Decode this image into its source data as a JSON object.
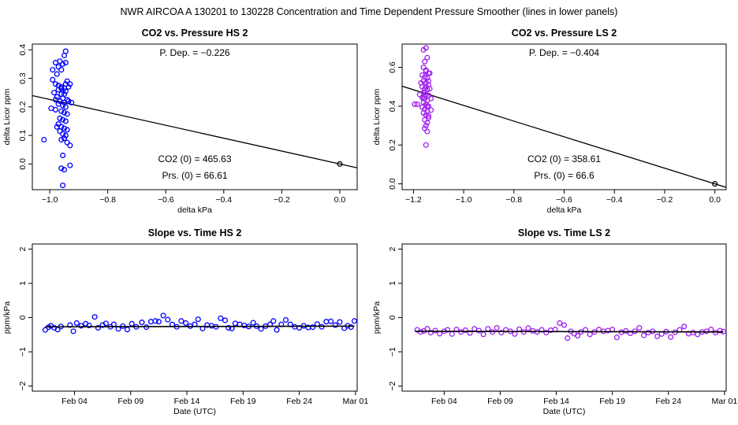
{
  "figure": {
    "title": "NWR   AIRCOA A   130201 to 130228   Concentration and Time Dependent Pressure Smoother (lines in lower panels)"
  },
  "chart_data": [
    {
      "id": "hs_pressure",
      "type": "scatter",
      "title": "CO2 vs. Pressure HS 2",
      "xlabel": "delta kPa",
      "ylabel": "delta Licor ppm",
      "xlim": [
        -1.06,
        0.06
      ],
      "ylim": [
        -0.09,
        0.42
      ],
      "xticks": [
        -1.0,
        -0.8,
        -0.6,
        -0.4,
        -0.2,
        0.0
      ],
      "xtick_labels": [
        "−1.0",
        "−0.8",
        "−0.6",
        "−0.4",
        "−0.2",
        "0.0"
      ],
      "yticks": [
        0.0,
        0.1,
        0.2,
        0.3,
        0.4
      ],
      "ytick_labels": [
        "0.0",
        "0.1",
        "0.2",
        "0.3",
        "0.4"
      ],
      "color": "#0000ff",
      "fit_line": {
        "slope": -0.226,
        "intercept": 0.0
      },
      "origin_marker": [
        0.0,
        0.0
      ],
      "annotations": {
        "p_dep": "P. Dep. =  −0.226",
        "co2_0": "CO2 (0) =  465.63",
        "prs_0": "Prs. (0) =  66.61"
      },
      "points": [
        [
          -0.99,
          0.33
        ],
        [
          -0.98,
          0.355
        ],
        [
          -0.97,
          0.34
        ],
        [
          -0.955,
          0.35
        ],
        [
          -0.95,
          0.38
        ],
        [
          -0.945,
          0.395
        ],
        [
          -0.96,
          0.33
        ],
        [
          -0.975,
          0.315
        ],
        [
          -0.965,
          0.36
        ],
        [
          -0.945,
          0.355
        ],
        [
          -0.99,
          0.295
        ],
        [
          -0.98,
          0.28
        ],
        [
          -0.96,
          0.27
        ],
        [
          -0.94,
          0.29
        ],
        [
          -0.93,
          0.28
        ],
        [
          -0.95,
          0.265
        ],
        [
          -0.97,
          0.26
        ],
        [
          -0.985,
          0.25
        ],
        [
          -0.96,
          0.245
        ],
        [
          -0.945,
          0.255
        ],
        [
          -0.975,
          0.235
        ],
        [
          -0.955,
          0.23
        ],
        [
          -0.94,
          0.225
        ],
        [
          -0.965,
          0.22
        ],
        [
          -0.95,
          0.215
        ],
        [
          -0.935,
          0.22
        ],
        [
          -0.97,
          0.21
        ],
        [
          -0.955,
          0.205
        ],
        [
          -0.945,
          0.2
        ],
        [
          -0.98,
          0.19
        ],
        [
          -0.96,
          0.185
        ],
        [
          -0.95,
          0.18
        ],
        [
          -0.94,
          0.175
        ],
        [
          -0.965,
          0.16
        ],
        [
          -0.955,
          0.155
        ],
        [
          -0.945,
          0.15
        ],
        [
          -0.97,
          0.14
        ],
        [
          -0.96,
          0.13
        ],
        [
          -0.95,
          0.125
        ],
        [
          -0.94,
          0.12
        ],
        [
          -0.965,
          0.115
        ],
        [
          -0.955,
          0.105
        ],
        [
          -0.945,
          0.1
        ],
        [
          -0.95,
          0.09
        ],
        [
          -0.94,
          0.075
        ],
        [
          -0.93,
          0.065
        ],
        [
          -0.995,
          0.195
        ],
        [
          -1.02,
          0.085
        ],
        [
          -0.96,
          0.085
        ],
        [
          -0.955,
          0.03
        ],
        [
          -0.96,
          -0.015
        ],
        [
          -0.95,
          -0.02
        ],
        [
          -0.93,
          -0.005
        ],
        [
          -0.955,
          -0.075
        ],
        [
          -0.935,
          0.27
        ],
        [
          -0.925,
          0.215
        ],
        [
          -0.98,
          0.225
        ],
        [
          -0.975,
          0.13
        ],
        [
          -0.945,
          0.28
        ],
        [
          -0.97,
          0.275
        ],
        [
          -0.95,
          0.245
        ],
        [
          -0.96,
          0.265
        ]
      ]
    },
    {
      "id": "ls_pressure",
      "type": "scatter",
      "title": "CO2 vs. Pressure LS 2",
      "xlabel": "delta kPa",
      "ylabel": "delta Licor ppm",
      "xlim": [
        -1.245,
        0.045
      ],
      "ylim": [
        -0.03,
        0.72
      ],
      "xticks": [
        -1.2,
        -1.0,
        -0.8,
        -0.6,
        -0.4,
        -0.2,
        0.0
      ],
      "xtick_labels": [
        "−1.2",
        "−1.0",
        "−0.8",
        "−0.6",
        "−0.4",
        "−0.2",
        "0.0"
      ],
      "yticks": [
        0.0,
        0.2,
        0.4,
        0.6
      ],
      "ytick_labels": [
        "0.0",
        "0.2",
        "0.4",
        "0.6"
      ],
      "color": "#a020f0",
      "fit_line": {
        "slope": -0.404,
        "intercept": 0.0
      },
      "origin_marker": [
        0.0,
        0.0
      ],
      "annotations": {
        "p_dep": "P. Dep. =  −0.404",
        "co2_0": "CO2 (0) =  358.61",
        "prs_0": "Prs. (0) =  66.6"
      },
      "points": [
        [
          -1.16,
          0.69
        ],
        [
          -1.15,
          0.7
        ],
        [
          -1.145,
          0.65
        ],
        [
          -1.155,
          0.63
        ],
        [
          -1.16,
          0.6
        ],
        [
          -1.15,
          0.585
        ],
        [
          -1.14,
          0.57
        ],
        [
          -1.165,
          0.56
        ],
        [
          -1.155,
          0.55
        ],
        [
          -1.145,
          0.545
        ],
        [
          -1.16,
          0.53
        ],
        [
          -1.15,
          0.52
        ],
        [
          -1.14,
          0.51
        ],
        [
          -1.165,
          0.5
        ],
        [
          -1.155,
          0.49
        ],
        [
          -1.145,
          0.485
        ],
        [
          -1.16,
          0.47
        ],
        [
          -1.15,
          0.46
        ],
        [
          -1.14,
          0.455
        ],
        [
          -1.165,
          0.445
        ],
        [
          -1.155,
          0.44
        ],
        [
          -1.145,
          0.43
        ],
        [
          -1.16,
          0.42
        ],
        [
          -1.15,
          0.41
        ],
        [
          -1.14,
          0.4
        ],
        [
          -1.165,
          0.395
        ],
        [
          -1.155,
          0.385
        ],
        [
          -1.145,
          0.375
        ],
        [
          -1.16,
          0.365
        ],
        [
          -1.15,
          0.355
        ],
        [
          -1.14,
          0.34
        ],
        [
          -1.155,
          0.33
        ],
        [
          -1.145,
          0.315
        ],
        [
          -1.15,
          0.3
        ],
        [
          -1.155,
          0.285
        ],
        [
          -1.145,
          0.27
        ],
        [
          -1.15,
          0.2
        ],
        [
          -1.135,
          0.57
        ],
        [
          -1.135,
          0.49
        ],
        [
          -1.13,
          0.44
        ],
        [
          -1.175,
          0.46
        ],
        [
          -1.185,
          0.41
        ],
        [
          -1.195,
          0.41
        ],
        [
          -1.17,
          0.52
        ],
        [
          -1.13,
          0.38
        ],
        [
          -1.14,
          0.35
        ],
        [
          -1.15,
          0.5
        ],
        [
          -1.16,
          0.44
        ],
        [
          -1.15,
          0.58
        ],
        [
          -1.14,
          0.53
        ],
        [
          -1.155,
          0.47
        ],
        [
          -1.145,
          0.4
        ]
      ]
    },
    {
      "id": "hs_time",
      "type": "scatter",
      "title": "Slope vs. Time HS 2",
      "xlabel": "Date (UTC)",
      "ylabel": "ppm/kPa",
      "xlim": [
        -0.75,
        28.15
      ],
      "ylim": [
        -2.15,
        2.15
      ],
      "xticks": [
        3,
        8,
        13,
        18,
        23,
        28
      ],
      "xtick_labels": [
        "Feb 04",
        "Feb 09",
        "Feb 14",
        "Feb 19",
        "Feb 24",
        "Mar 01"
      ],
      "yticks": [
        -2,
        -1,
        0,
        1,
        2
      ],
      "ytick_labels": [
        "−2",
        "−1",
        "0",
        "1",
        "2"
      ],
      "color": "#0000ff",
      "smoother": {
        "x": [
          0.4,
          27.9
        ],
        "y": [
          -0.27,
          -0.25
        ]
      },
      "points": [
        [
          0.4,
          -0.36
        ],
        [
          0.7,
          -0.28
        ],
        [
          0.9,
          -0.24
        ],
        [
          1.2,
          -0.3
        ],
        [
          1.5,
          -0.35
        ],
        [
          1.8,
          -0.26
        ],
        [
          2.6,
          -0.22
        ],
        [
          2.9,
          -0.4
        ],
        [
          3.2,
          -0.16
        ],
        [
          3.6,
          -0.24
        ],
        [
          4.0,
          -0.18
        ],
        [
          4.3,
          -0.23
        ],
        [
          4.8,
          0.02
        ],
        [
          5.1,
          -0.3
        ],
        [
          5.5,
          -0.22
        ],
        [
          5.8,
          -0.17
        ],
        [
          6.2,
          -0.27
        ],
        [
          6.5,
          -0.2
        ],
        [
          6.9,
          -0.33
        ],
        [
          7.3,
          -0.25
        ],
        [
          7.7,
          -0.35
        ],
        [
          8.1,
          -0.18
        ],
        [
          8.5,
          -0.27
        ],
        [
          9.0,
          -0.14
        ],
        [
          9.4,
          -0.28
        ],
        [
          9.8,
          -0.12
        ],
        [
          10.2,
          -0.1
        ],
        [
          10.5,
          -0.12
        ],
        [
          10.9,
          0.06
        ],
        [
          11.3,
          -0.06
        ],
        [
          11.7,
          -0.2
        ],
        [
          12.1,
          -0.27
        ],
        [
          12.5,
          -0.1
        ],
        [
          12.9,
          -0.16
        ],
        [
          13.3,
          -0.25
        ],
        [
          13.7,
          -0.2
        ],
        [
          14.0,
          -0.05
        ],
        [
          14.4,
          -0.32
        ],
        [
          14.8,
          -0.22
        ],
        [
          15.2,
          -0.24
        ],
        [
          15.6,
          -0.27
        ],
        [
          16.0,
          -0.02
        ],
        [
          16.4,
          -0.08
        ],
        [
          16.7,
          -0.3
        ],
        [
          17.0,
          -0.32
        ],
        [
          17.3,
          -0.17
        ],
        [
          17.7,
          -0.2
        ],
        [
          18.1,
          -0.23
        ],
        [
          18.5,
          -0.26
        ],
        [
          18.9,
          -0.15
        ],
        [
          19.2,
          -0.25
        ],
        [
          19.6,
          -0.33
        ],
        [
          20.0,
          -0.25
        ],
        [
          20.4,
          -0.2
        ],
        [
          20.7,
          -0.1
        ],
        [
          21.0,
          -0.36
        ],
        [
          21.4,
          -0.2
        ],
        [
          21.8,
          -0.07
        ],
        [
          22.2,
          -0.2
        ],
        [
          22.6,
          -0.27
        ],
        [
          23.0,
          -0.3
        ],
        [
          23.4,
          -0.24
        ],
        [
          23.8,
          -0.29
        ],
        [
          24.2,
          -0.28
        ],
        [
          24.6,
          -0.19
        ],
        [
          25.0,
          -0.27
        ],
        [
          25.4,
          -0.12
        ],
        [
          25.8,
          -0.11
        ],
        [
          26.2,
          -0.22
        ],
        [
          26.6,
          -0.13
        ],
        [
          27.0,
          -0.31
        ],
        [
          27.3,
          -0.24
        ],
        [
          27.6,
          -0.28
        ],
        [
          27.9,
          -0.1
        ]
      ]
    },
    {
      "id": "ls_time",
      "type": "scatter",
      "title": "Slope vs. Time LS 2",
      "xlabel": "Date (UTC)",
      "ylabel": "ppm/kPa",
      "xlim": [
        -0.75,
        28.15
      ],
      "ylim": [
        -2.15,
        2.15
      ],
      "xticks": [
        3,
        8,
        13,
        18,
        23,
        28
      ],
      "xtick_labels": [
        "Feb 04",
        "Feb 09",
        "Feb 14",
        "Feb 19",
        "Feb 24",
        "Mar 01"
      ],
      "yticks": [
        -2,
        -1,
        0,
        1,
        2
      ],
      "ytick_labels": [
        "−2",
        "−1",
        "0",
        "1",
        "2"
      ],
      "color": "#a020f0",
      "smoother": {
        "x": [
          0.4,
          27.9
        ],
        "y": [
          -0.4,
          -0.42
        ]
      },
      "points": [
        [
          0.6,
          -0.36
        ],
        [
          0.9,
          -0.42
        ],
        [
          1.2,
          -0.39
        ],
        [
          1.5,
          -0.33
        ],
        [
          1.8,
          -0.44
        ],
        [
          2.2,
          -0.38
        ],
        [
          2.6,
          -0.47
        ],
        [
          3.0,
          -0.4
        ],
        [
          3.3,
          -0.36
        ],
        [
          3.7,
          -0.48
        ],
        [
          4.1,
          -0.35
        ],
        [
          4.5,
          -0.42
        ],
        [
          4.9,
          -0.37
        ],
        [
          5.3,
          -0.45
        ],
        [
          5.7,
          -0.33
        ],
        [
          6.1,
          -0.38
        ],
        [
          6.5,
          -0.49
        ],
        [
          6.9,
          -0.33
        ],
        [
          7.3,
          -0.42
        ],
        [
          7.7,
          -0.3
        ],
        [
          8.1,
          -0.44
        ],
        [
          8.5,
          -0.36
        ],
        [
          8.9,
          -0.4
        ],
        [
          9.3,
          -0.48
        ],
        [
          9.7,
          -0.34
        ],
        [
          10.1,
          -0.42
        ],
        [
          10.5,
          -0.31
        ],
        [
          10.9,
          -0.39
        ],
        [
          11.3,
          -0.42
        ],
        [
          11.7,
          -0.36
        ],
        [
          12.1,
          -0.44
        ],
        [
          12.5,
          -0.37
        ],
        [
          12.9,
          -0.35
        ],
        [
          13.3,
          -0.16
        ],
        [
          13.7,
          -0.22
        ],
        [
          14.0,
          -0.6
        ],
        [
          14.3,
          -0.4
        ],
        [
          14.6,
          -0.47
        ],
        [
          14.9,
          -0.53
        ],
        [
          15.2,
          -0.42
        ],
        [
          15.6,
          -0.36
        ],
        [
          16.0,
          -0.49
        ],
        [
          16.4,
          -0.42
        ],
        [
          16.8,
          -0.35
        ],
        [
          17.2,
          -0.4
        ],
        [
          17.6,
          -0.38
        ],
        [
          18.0,
          -0.35
        ],
        [
          18.4,
          -0.58
        ],
        [
          18.8,
          -0.43
        ],
        [
          19.2,
          -0.39
        ],
        [
          19.6,
          -0.46
        ],
        [
          20.0,
          -0.4
        ],
        [
          20.4,
          -0.3
        ],
        [
          20.8,
          -0.52
        ],
        [
          21.2,
          -0.44
        ],
        [
          21.6,
          -0.4
        ],
        [
          22.0,
          -0.55
        ],
        [
          22.4,
          -0.48
        ],
        [
          22.8,
          -0.41
        ],
        [
          23.2,
          -0.57
        ],
        [
          23.6,
          -0.43
        ],
        [
          24.0,
          -0.36
        ],
        [
          24.4,
          -0.26
        ],
        [
          24.8,
          -0.47
        ],
        [
          25.2,
          -0.44
        ],
        [
          25.6,
          -0.49
        ],
        [
          26.0,
          -0.42
        ],
        [
          26.4,
          -0.4
        ],
        [
          26.8,
          -0.35
        ],
        [
          27.2,
          -0.44
        ],
        [
          27.6,
          -0.38
        ],
        [
          27.9,
          -0.41
        ]
      ]
    }
  ]
}
